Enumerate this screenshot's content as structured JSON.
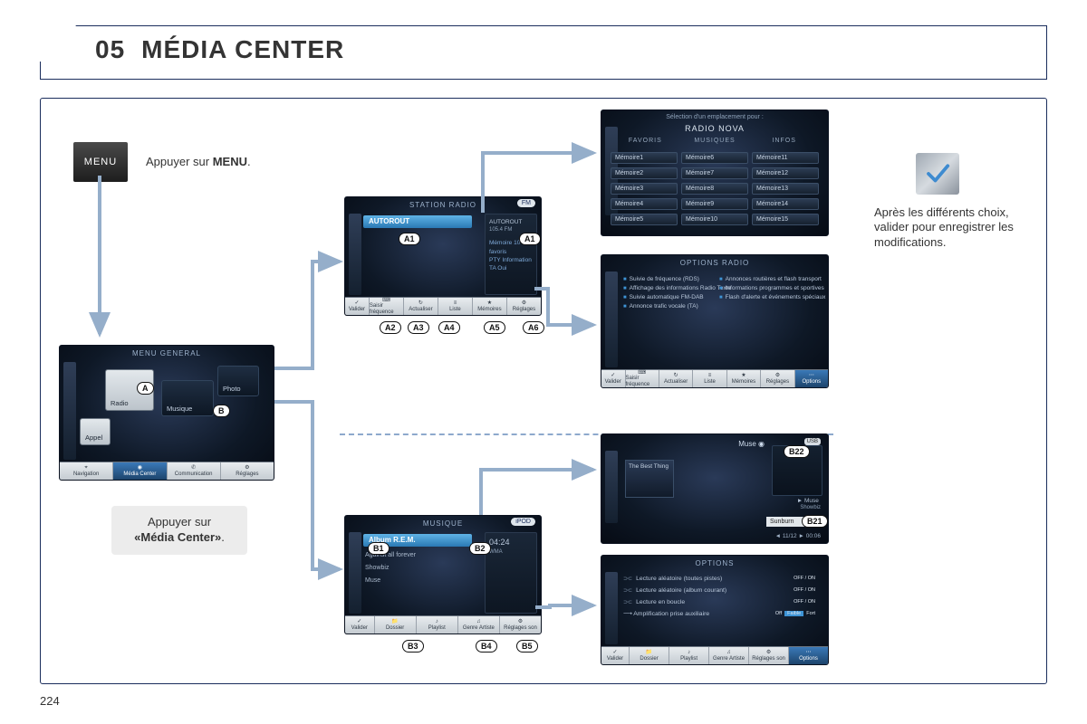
{
  "page": {
    "section_number": "05",
    "title": "MÉDIA CENTER",
    "page_number": "224"
  },
  "colors": {
    "frame": "#1a2d5c",
    "screen_bg_light": "#2a3a58",
    "screen_bg_dark": "#060b14",
    "highlight": "#5fb3e6",
    "dash": "#8da9cc",
    "arrow": "#95aeca"
  },
  "menu_button": {
    "label": "MENU"
  },
  "step1_note_prefix": "Appuyer sur ",
  "step1_note_bold": "MENU",
  "step1_note_suffix": ".",
  "step2_note_prefix": "Appuyer sur",
  "step2_note_bold": "«Média Center»",
  "step2_note_suffix": ".",
  "validate_note": "Après les différents choix, valider pour enregistrer les modifications.",
  "menu_general": {
    "title": "MENU GENERAL",
    "tiles": {
      "radio": "Radio",
      "musique": "Musique",
      "photo": "Photo",
      "appel": "Appel"
    },
    "bottom": [
      "Navigation",
      "Média Center",
      "Communication",
      "Réglages"
    ],
    "callouts": {
      "A": "A",
      "B": "B"
    }
  },
  "station_radio": {
    "title": "STATION RADIO",
    "band": "FM",
    "highlight": "AUTOROUT",
    "right_lines": [
      "AUTOROUT",
      "105.4 FM",
      "Mémoire   10 favoris",
      "PTY   Information",
      "TA   Oui"
    ],
    "bottom": [
      "Valider",
      "Saisir fréquence",
      "Actualiser",
      "Liste",
      "Mémoires",
      "Réglages"
    ],
    "callouts": [
      "A1",
      "A1",
      "A2",
      "A3",
      "A4",
      "A5",
      "A6"
    ]
  },
  "radio_memory": {
    "title_line1": "Sélection d'un emplacement pour :",
    "title_line2": "RADIO NOVA",
    "tabs": [
      "FAVORIS",
      "MUSIQUES",
      "INFOS"
    ],
    "cells": [
      "Mémoire1",
      "Mémoire6",
      "Mémoire11",
      "Mémoire2",
      "Mémoire7",
      "Mémoire12",
      "Mémoire3",
      "Mémoire8",
      "Mémoire13",
      "Mémoire4",
      "Mémoire9",
      "Mémoire14",
      "Mémoire5",
      "Mémoire10",
      "Mémoire15"
    ]
  },
  "options_radio": {
    "title": "OPTIONS RADIO",
    "left_options": [
      "Suivie de fréquence (RDS)",
      "Affichage des informations Radio Texte",
      "Suivie automatique FM-DAB",
      "Annonce trafic vocale (TA)"
    ],
    "right_options": [
      "Annonces routières et flash transport",
      "Informations programmes et sportives",
      "Flash d'alerte et événements spéciaux"
    ],
    "bottom": [
      "Valider",
      "Saisir fréquence",
      "Actualiser",
      "Liste",
      "Mémoires",
      "Réglages",
      "Options"
    ]
  },
  "musique": {
    "title": "MUSIQUE",
    "source": "iPOD",
    "highlight": "Album R.E.M.",
    "right_time": "04:24",
    "right_fmt": "WMA",
    "tracks": [
      "Against all forever",
      "Showbiz",
      "Muse"
    ],
    "track_counts": [
      "2",
      "42",
      "3"
    ],
    "bottom": [
      "Valider",
      "Dossier",
      "Playlist",
      "Genre Artiste",
      "Réglages son"
    ],
    "callouts": [
      "B1",
      "B2",
      "B3",
      "B4",
      "B5"
    ]
  },
  "muse_screen": {
    "title": "Muse",
    "source": "USB",
    "album": "The Best Thing",
    "artist_line": "Muse",
    "subline": "Showbiz",
    "track": "Sunburn",
    "position": "11/12",
    "time": "00:06",
    "callouts": [
      "B21",
      "B22"
    ]
  },
  "options_b": {
    "title": "OPTIONS",
    "lines": [
      "Lecture aléatoire (toutes pistes)",
      "Lecture aléatoire (album courant)",
      "Lecture en boucle",
      "Amplification prise auxiliaire"
    ],
    "toggles": [
      "OFF / ON",
      "OFF / ON",
      "OFF / ON"
    ],
    "amp_levels": [
      "Off",
      "Faible",
      "Fort"
    ],
    "bottom": [
      "Valider",
      "Dossier",
      "Playlist",
      "Genre Artiste",
      "Réglages son",
      "Options"
    ]
  }
}
